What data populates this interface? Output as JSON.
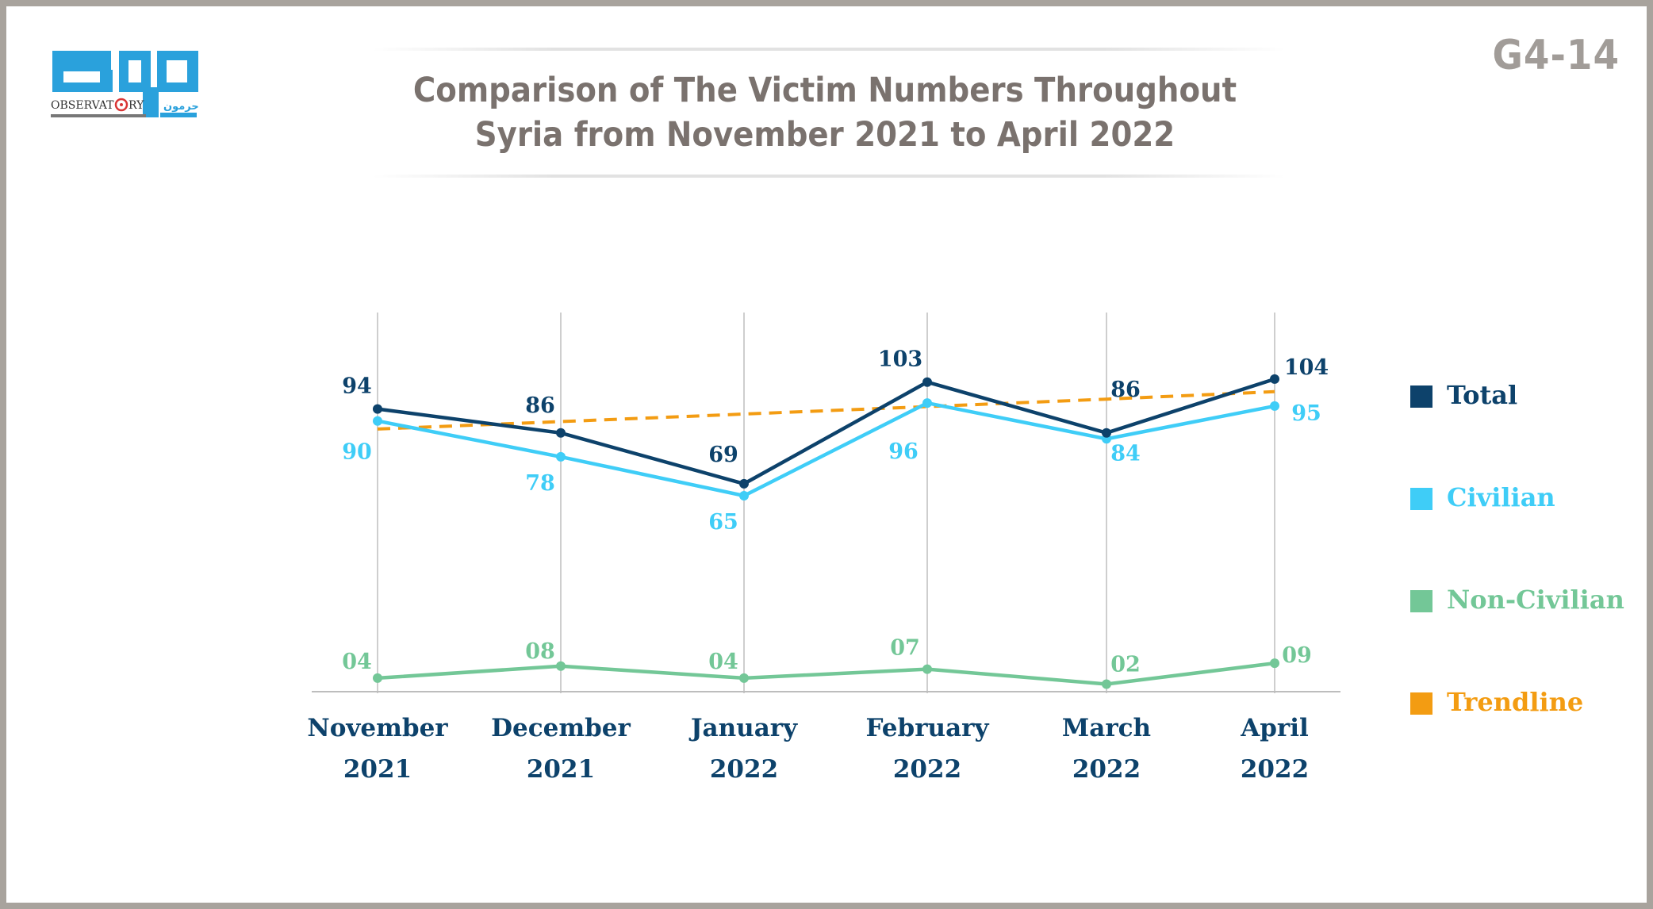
{
  "page": {
    "code": "G4-14",
    "title_line1": "Comparison of The Victim Numbers Throughout",
    "title_line2": "Syria from November 2021 to April 2022",
    "logo": {
      "arabic_text": "رصد",
      "sub_arabic": "حرمون",
      "sub_english": "OBSERVATORY"
    }
  },
  "colors": {
    "total": "#0d426b",
    "civilian": "#3fcdf7",
    "non_civilian": "#73c797",
    "trendline": "#f39c12",
    "axis": "#bdbdbd",
    "title": "#7a726e"
  },
  "chart_data": {
    "type": "line",
    "title": "Comparison of The Victim Numbers Throughout Syria from November 2021 to April 2022",
    "categories": [
      [
        "November",
        "2021"
      ],
      [
        "December",
        "2021"
      ],
      [
        "January",
        "2022"
      ],
      [
        "February",
        "2022"
      ],
      [
        "March",
        "2022"
      ],
      [
        "April",
        "2022"
      ]
    ],
    "series": [
      {
        "name": "Total",
        "key": "total",
        "values": [
          94,
          86,
          69,
          103,
          86,
          104
        ],
        "labels": [
          "94",
          "86",
          "69",
          "103",
          "86",
          "104"
        ]
      },
      {
        "name": "Civilian",
        "key": "civilian",
        "values": [
          90,
          78,
          65,
          96,
          84,
          95
        ],
        "labels": [
          "90",
          "78",
          "65",
          "96",
          "84",
          "95"
        ]
      },
      {
        "name": "Non-Civilian",
        "key": "non_civilian",
        "values": [
          4,
          8,
          4,
          7,
          2,
          9
        ],
        "labels": [
          "04",
          "08",
          "04",
          "07",
          "02",
          "09"
        ]
      },
      {
        "name": "Trendline",
        "key": "trendline",
        "style": "dashed",
        "values": [
          87.3,
          89.8,
          92.3,
          94.8,
          97.3,
          99.8
        ]
      }
    ],
    "ylim": [
      0,
      137
    ],
    "xlabel": "",
    "ylabel": "",
    "legend": [
      "Total",
      "Civilian",
      "Non-Civilian",
      "Trendline"
    ],
    "legend_position": "right"
  }
}
